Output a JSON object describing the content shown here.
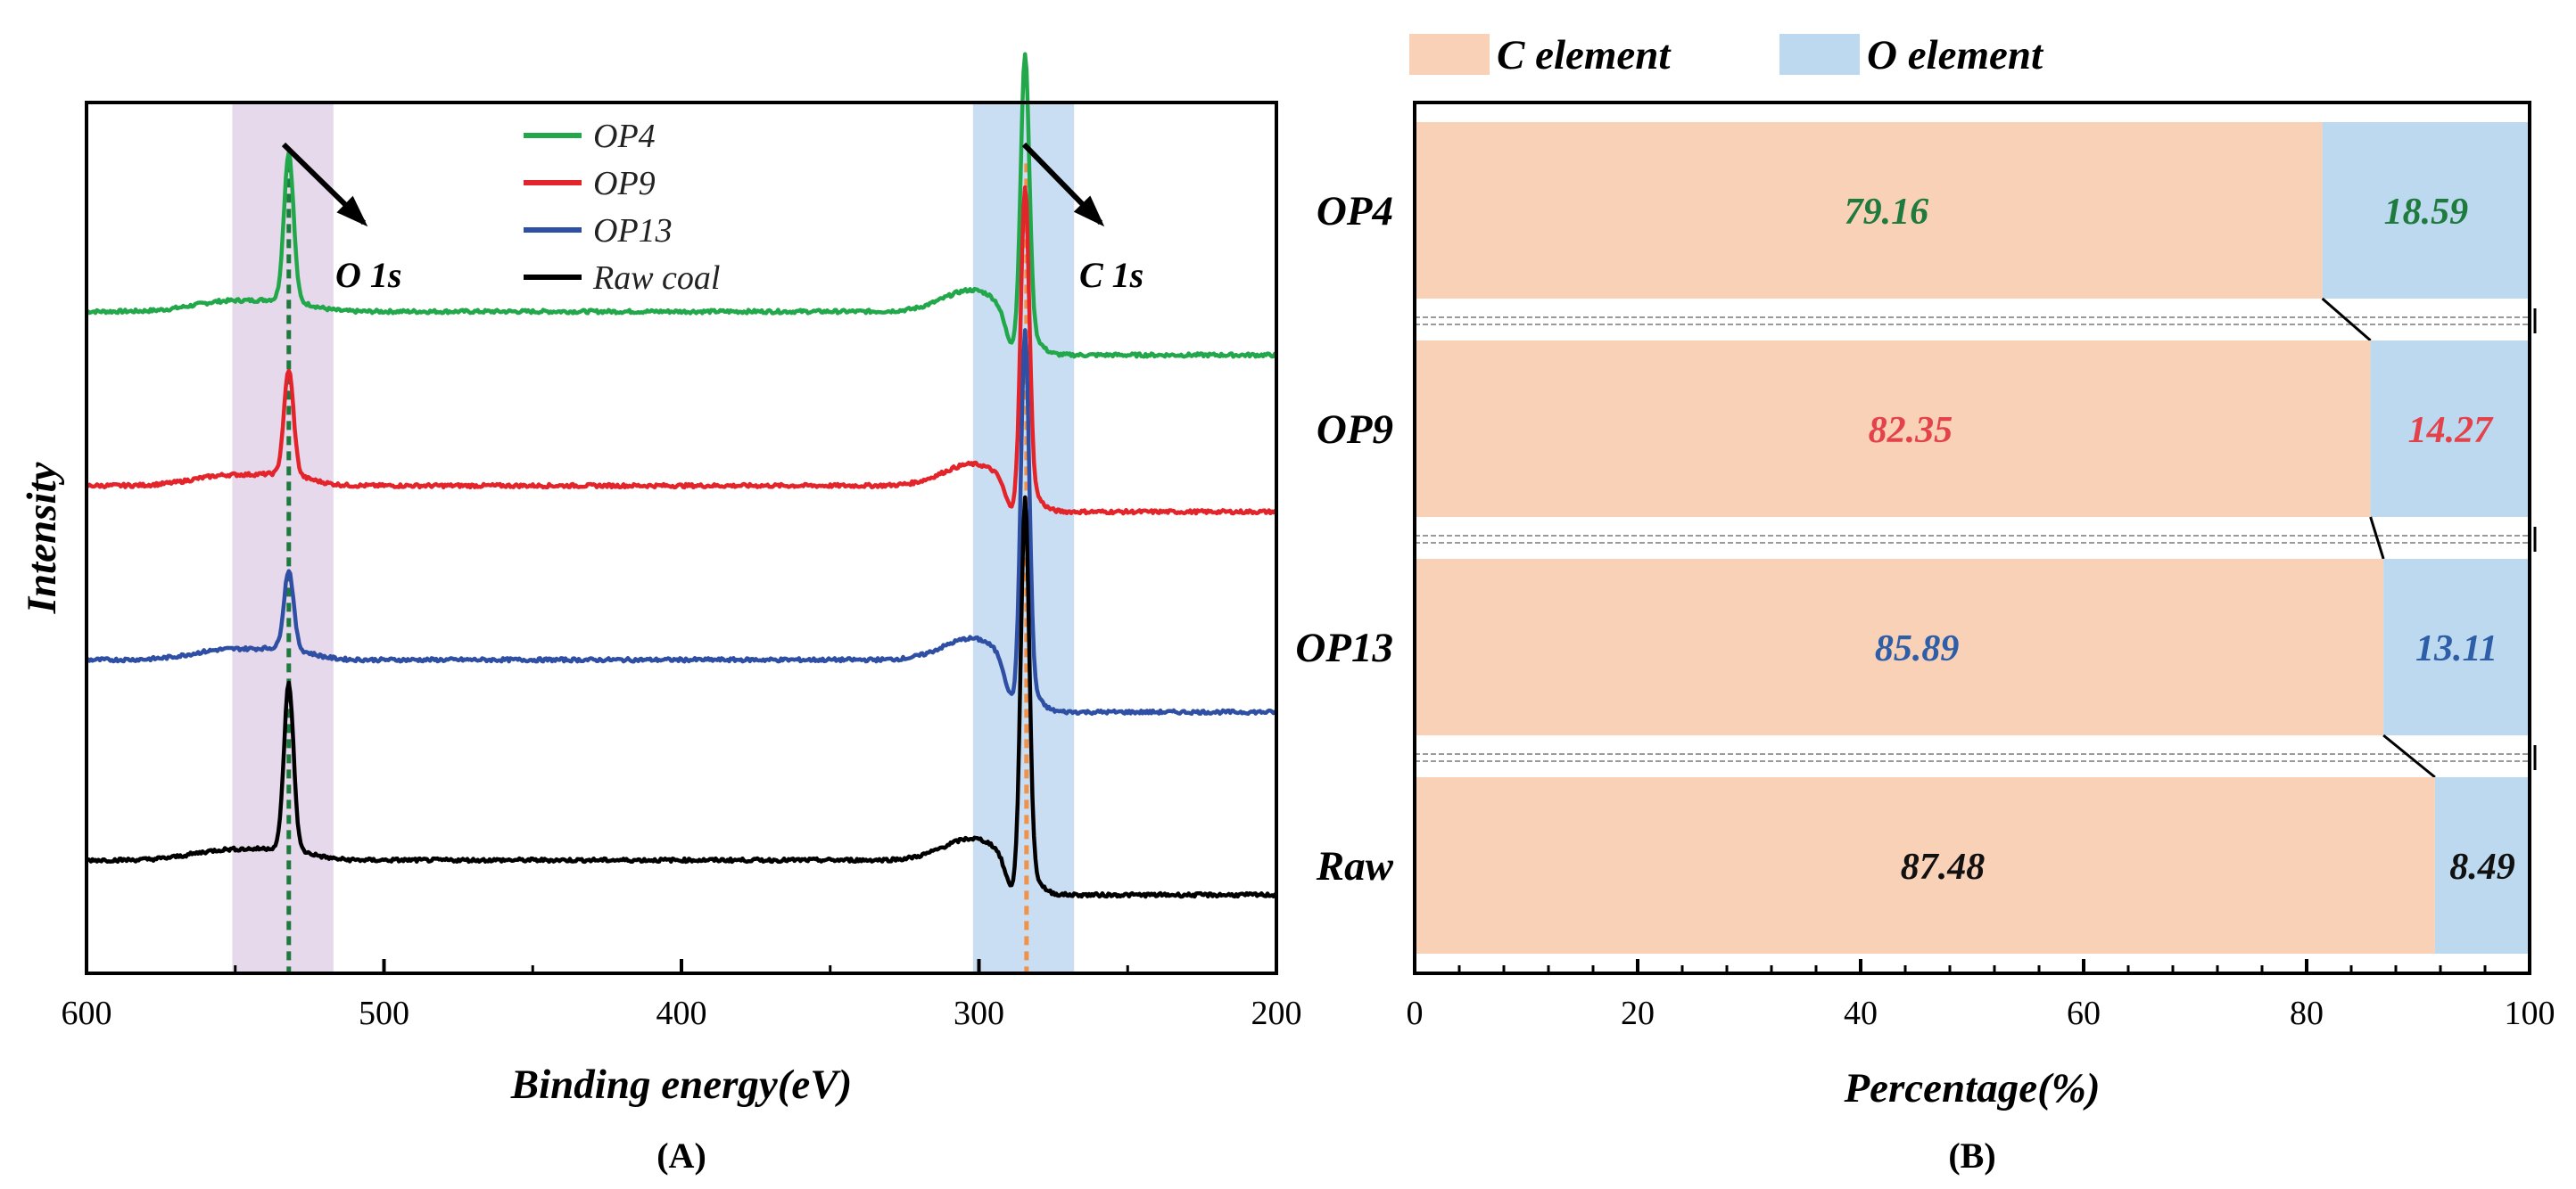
{
  "chart_data": [
    {
      "panel": "(A)",
      "type": "line",
      "xlabel": "Binding energy(eV)",
      "ylabel": "Intensity",
      "xlim": [
        600,
        200
      ],
      "x_ticks": [
        "600",
        "500",
        "400",
        "300",
        "200"
      ],
      "x_tick_values": [
        600,
        500,
        400,
        300,
        200
      ],
      "highlight_bands": [
        {
          "name": "O 1s",
          "from": 551,
          "to": 517,
          "color": "#e6d9ec",
          "center": 532,
          "line_color": "#1e7a3c"
        },
        {
          "name": "C 1s",
          "from": 302,
          "to": 268,
          "color": "#c9def2",
          "center": 284,
          "line_color": "#f0924a"
        }
      ],
      "annotations": [
        "O 1s",
        "C 1s"
      ],
      "series": [
        {
          "name": "OP4",
          "color": "#22a84a",
          "baseline": 0.76,
          "o_peak": 0.17,
          "c_peak": 0.31,
          "step": 0.05
        },
        {
          "name": "OP9",
          "color": "#e3242b",
          "baseline": 0.56,
          "o_peak": 0.12,
          "c_peak": 0.34,
          "step": 0.03
        },
        {
          "name": "OP13",
          "color": "#2e4fa3",
          "baseline": 0.36,
          "o_peak": 0.09,
          "c_peak": 0.4,
          "step": 0.06
        },
        {
          "name": "Raw coal",
          "color": "#000000",
          "baseline": 0.13,
          "o_peak": 0.19,
          "c_peak": 0.42,
          "step": 0.04
        }
      ]
    },
    {
      "panel": "(B)",
      "type": "bar",
      "orientation": "horizontal",
      "stacked": true,
      "xlabel": "Percentage(%)",
      "xlim": [
        0,
        100
      ],
      "x_ticks": [
        "0",
        "20",
        "40",
        "60",
        "80",
        "100"
      ],
      "x_tick_values": [
        0,
        20,
        40,
        60,
        80,
        100
      ],
      "categories": [
        "OP4",
        "OP9",
        "OP13",
        "Raw"
      ],
      "label_colors": [
        "#1f7a3e",
        "#e3424a",
        "#2e5ea8",
        "#111111"
      ],
      "series": [
        {
          "name": "C element",
          "color": "#f9d1b6",
          "values": [
            79.16,
            82.35,
            85.89,
            87.48
          ],
          "labels": [
            "79.16",
            "82.35",
            "85.89",
            "87.48"
          ]
        },
        {
          "name": "O element",
          "color": "#bcd9ef",
          "values": [
            18.59,
            14.27,
            13.11,
            8.49
          ],
          "labels": [
            "18.59",
            "14.27",
            "13.11",
            "8.49"
          ]
        }
      ]
    }
  ]
}
